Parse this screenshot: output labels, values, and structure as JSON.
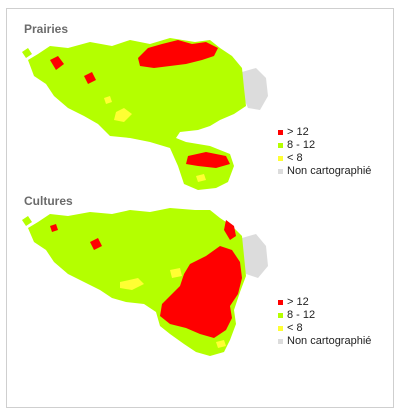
{
  "colors": {
    "high": "#ff0000",
    "mid": "#b4ff00",
    "low": "#ffff33",
    "unmapped": "#dcdcdc"
  },
  "panels": [
    {
      "title": "Prairies",
      "legend": [
        {
          "label": "> 12",
          "color": "#ff0000"
        },
        {
          "label": "8 - 12",
          "color": "#b4ff00"
        },
        {
          "label": "< 8",
          "color": "#ffff33"
        },
        {
          "label": "Non cartographié",
          "color": "#dcdcdc"
        }
      ]
    },
    {
      "title": "Cultures",
      "legend": [
        {
          "label": "> 12",
          "color": "#ff0000"
        },
        {
          "label": "8 - 12",
          "color": "#b4ff00"
        },
        {
          "label": "< 8",
          "color": "#ffff33"
        },
        {
          "label": "Non cartographié",
          "color": "#dcdcdc"
        }
      ]
    }
  ]
}
